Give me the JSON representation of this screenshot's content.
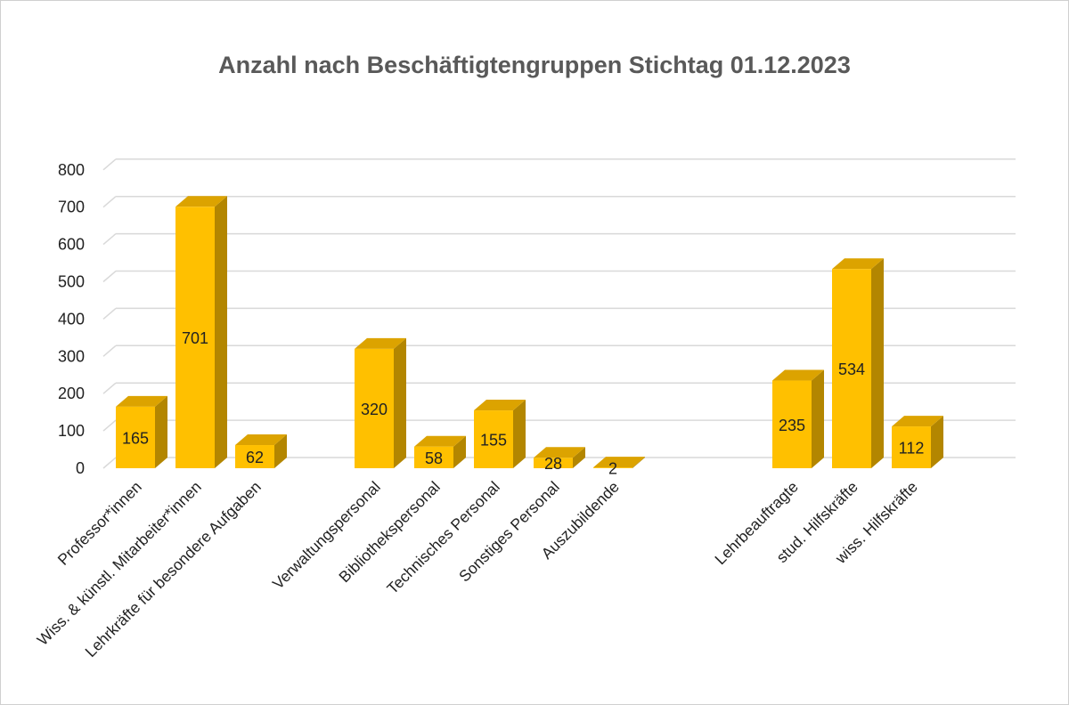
{
  "chart_data": {
    "type": "bar",
    "title": "Anzahl nach Beschäftigtengruppen Stichtag 01.12.2023",
    "xlabel": "",
    "ylabel": "",
    "ylim": [
      0,
      800
    ],
    "yticks": [
      0,
      100,
      200,
      300,
      400,
      500,
      600,
      700,
      800
    ],
    "grid": true,
    "legend": "none",
    "style": "3d-column",
    "colors": {
      "front": "#FFC000",
      "side": "#B38600",
      "top": "#DCA300",
      "grid": "#d9d9d9",
      "title": "#595959"
    },
    "categories": [
      "Professor*innen",
      "Wiss. & künstl. Mitarbeiter*innen",
      "Lehrkräfte für besondere Aufgaben",
      "",
      "Verwaltungspersonal",
      "Bibliothekspersonal",
      "Technisches Personal",
      "Sonstiges Personal",
      "Auszubildende",
      "",
      "",
      "Lehrbeauftragte",
      "stud. Hilfskräfte",
      "wiss. Hilfskräfte"
    ],
    "values": [
      165,
      701,
      62,
      null,
      320,
      58,
      155,
      28,
      2,
      null,
      null,
      235,
      534,
      112
    ]
  }
}
